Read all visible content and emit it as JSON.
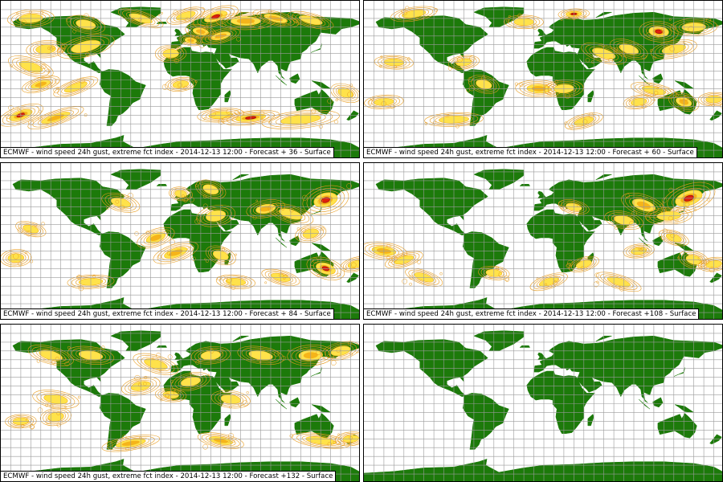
{
  "colors": {
    "land": "#1c7a0a",
    "ocean": "#ffffff",
    "grid": "#9a9a9a",
    "contour": "#e89c1e",
    "efi_low": "#ffe24a",
    "efi_mid": "#f5b41a",
    "efi_high": "#e0200c",
    "efi_max": "#a01010"
  },
  "panels": [
    {
      "caption": "ECMWF - wind speed 24h gust, extreme fct index - 2014-12-13 12:00 - Forecast + 36 - Surface"
    },
    {
      "caption": "ECMWF - wind speed 24h gust, extreme fct index - 2014-12-13 12:00 - Forecast + 60 - Surface"
    },
    {
      "caption": "ECMWF - wind speed 24h gust, extreme fct index - 2014-12-13 12:00 - Forecast + 84 - Surface"
    },
    {
      "caption": "ECMWF - wind speed 24h gust, extreme fct index - 2014-12-13 12:00 - Forecast +108 - Surface"
    },
    {
      "caption": "ECMWF - wind speed 24h gust, extreme fct index - 2014-12-13 12:00 - Forecast +132 - Surface"
    },
    {
      "caption": ""
    }
  ]
}
